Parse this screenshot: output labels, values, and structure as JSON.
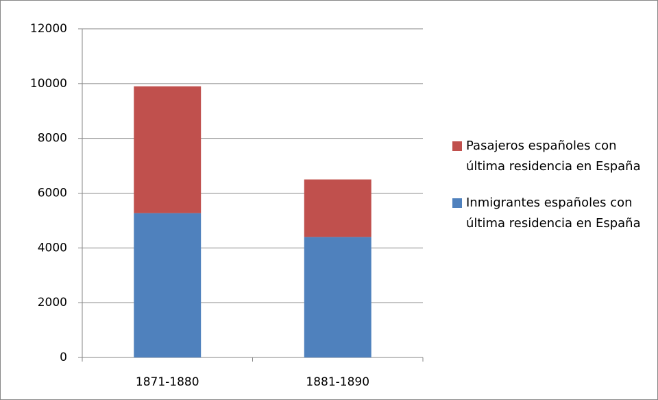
{
  "chart_data": {
    "type": "stacked_bar",
    "categories": [
      "1871-1880",
      "1881-1890"
    ],
    "series": [
      {
        "name": "Inmigrantes españoles con última residencia en España",
        "color": "#4f81bd",
        "values": [
          5270,
          4400
        ]
      },
      {
        "name": "Pasajeros españoles con última residencia en España",
        "color": "#c0504d",
        "values": [
          4630,
          2100
        ]
      }
    ],
    "ylim": [
      0,
      12000
    ],
    "yticks": [
      0,
      2000,
      4000,
      6000,
      8000,
      10000,
      12000
    ],
    "grid": true,
    "legend": "right"
  }
}
